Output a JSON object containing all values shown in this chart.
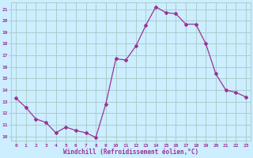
{
  "x": [
    0,
    1,
    2,
    3,
    4,
    5,
    6,
    7,
    8,
    9,
    10,
    11,
    12,
    13,
    14,
    15,
    16,
    17,
    18,
    19,
    20,
    21,
    22,
    23
  ],
  "y": [
    13.3,
    12.5,
    11.5,
    11.2,
    10.3,
    10.8,
    10.5,
    10.3,
    9.9,
    12.8,
    16.7,
    16.6,
    17.8,
    19.6,
    21.2,
    20.7,
    20.6,
    19.7,
    19.7,
    18.0,
    15.4,
    14.0,
    13.8,
    13.4
  ],
  "line_color": "#993399",
  "marker_color": "#993399",
  "bg_color": "#cceeff",
  "grid_color": "#aacccc",
  "xlabel": "Windchill (Refroidissement éolien,°C)",
  "xlabel_color": "#993399",
  "yticks": [
    10,
    11,
    12,
    13,
    14,
    15,
    16,
    17,
    18,
    19,
    20,
    21
  ],
  "xlim": [
    -0.5,
    23.5
  ],
  "ylim": [
    9.6,
    21.6
  ],
  "tick_color": "#993399"
}
